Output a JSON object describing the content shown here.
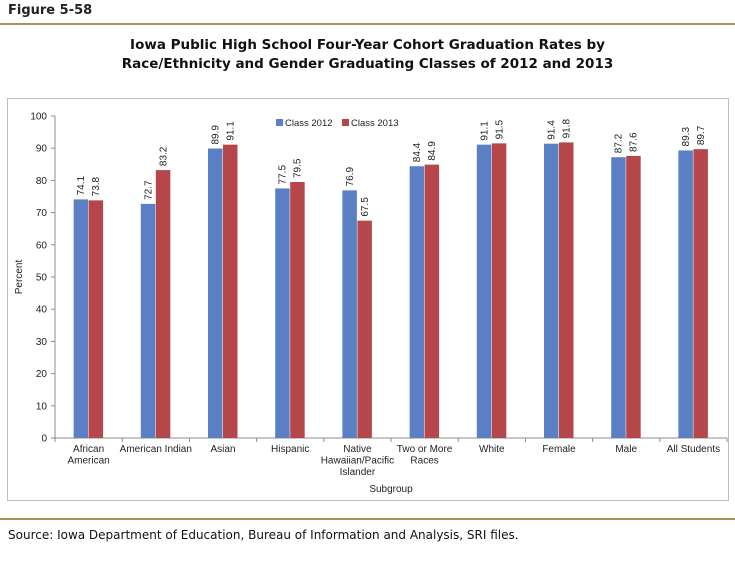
{
  "figure_label": "Figure 5-58",
  "chart_data": {
    "type": "bar",
    "title_lines": [
      "Iowa Public High School Four-Year Cohort Graduation Rates by",
      "Race/Ethnicity and Gender Graduating Classes of 2012 and 2013"
    ],
    "xlabel": "Subgroup",
    "ylabel": "Percent",
    "ylim": [
      0,
      100
    ],
    "yticks": [
      0,
      10,
      20,
      30,
      40,
      50,
      60,
      70,
      80,
      90,
      100
    ],
    "grid": false,
    "legend_position": "top-center",
    "categories": [
      [
        "African",
        "American"
      ],
      [
        "American Indian"
      ],
      [
        "Asian"
      ],
      [
        "Hispanic"
      ],
      [
        "Native",
        "Hawaiian/Pacific",
        "Islander"
      ],
      [
        "Two or More",
        "Races"
      ],
      [
        "White"
      ],
      [
        "Female"
      ],
      [
        "Male"
      ],
      [
        "All Students"
      ]
    ],
    "series": [
      {
        "name": "Class 2012",
        "color": "#5b7fc4",
        "values": [
          74.1,
          72.7,
          89.9,
          77.5,
          76.9,
          84.4,
          91.1,
          91.4,
          87.2,
          89.3
        ]
      },
      {
        "name": "Class 2013",
        "color": "#b5474a",
        "values": [
          73.8,
          83.2,
          91.1,
          79.5,
          67.5,
          84.9,
          91.5,
          91.8,
          87.6,
          89.7
        ]
      }
    ]
  },
  "source": "Source:  Iowa Department of Education, Bureau of Information and Analysis, SRI files."
}
